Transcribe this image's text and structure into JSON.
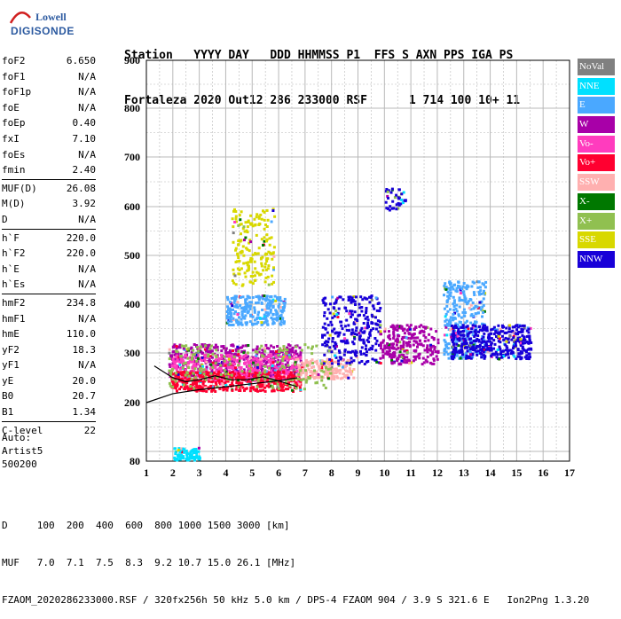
{
  "logo": {
    "line1": "Lowell",
    "line2": "DIGISONDE"
  },
  "header": {
    "labels": "Station   YYYY DAY   DDD HHMMSS P1  FFS S AXN PPS IGA PS",
    "values": "Fortaleza 2020 Out12 286 233000 RSF      1 714 100 10+ 11"
  },
  "params_groups": [
    [
      {
        "k": "foF2",
        "v": "6.650"
      },
      {
        "k": "foF1",
        "v": "N/A"
      },
      {
        "k": "foF1p",
        "v": "N/A"
      },
      {
        "k": "foE",
        "v": "N/A"
      },
      {
        "k": "foEp",
        "v": "0.40"
      },
      {
        "k": "fxI",
        "v": "7.10"
      },
      {
        "k": "foEs",
        "v": "N/A"
      },
      {
        "k": "fmin",
        "v": "2.40"
      }
    ],
    [
      {
        "k": "MUF(D)",
        "v": "26.08"
      },
      {
        "k": "M(D)",
        "v": "3.92"
      },
      {
        "k": "D",
        "v": "N/A"
      }
    ],
    [
      {
        "k": "h`F",
        "v": "220.0"
      },
      {
        "k": "h`F2",
        "v": "220.0"
      },
      {
        "k": "h`E",
        "v": "N/A"
      },
      {
        "k": "h`Es",
        "v": "N/A"
      }
    ],
    [
      {
        "k": "hmF2",
        "v": "234.8"
      },
      {
        "k": "hmF1",
        "v": "N/A"
      },
      {
        "k": "hmE",
        "v": "110.0"
      },
      {
        "k": "yF2",
        "v": "18.3"
      },
      {
        "k": "yF1",
        "v": "N/A"
      },
      {
        "k": "yE",
        "v": "20.0"
      },
      {
        "k": "B0",
        "v": "20.7"
      },
      {
        "k": "B1",
        "v": "1.34"
      }
    ],
    [
      {
        "k": "C-level",
        "v": "22"
      }
    ]
  ],
  "auto": {
    "l1": "Auto:",
    "l2": "Artist5",
    "l3": "500200"
  },
  "legend": [
    {
      "label": "NoVal",
      "color": "#808080"
    },
    {
      "label": "NNE",
      "color": "#00e0ff"
    },
    {
      "label": "E",
      "color": "#4aa8ff"
    },
    {
      "label": "W",
      "color": "#a800a8"
    },
    {
      "label": "Vo-",
      "color": "#ff3cbe"
    },
    {
      "label": "Vo+",
      "color": "#ff0030"
    },
    {
      "label": "SSW",
      "color": "#ffb0b0"
    },
    {
      "label": "X-",
      "color": "#007800"
    },
    {
      "label": "X+",
      "color": "#90c050"
    },
    {
      "label": "SSE",
      "color": "#d8d800"
    },
    {
      "label": "NNW",
      "color": "#1800d8"
    }
  ],
  "footer": {
    "l1": "D     100  200  400  600  800 1000 1500 3000 [km]",
    "l2": "MUF   7.0  7.1  7.5  8.3  9.2 10.7 15.0 26.1 [MHz]",
    "l3": "FZAOM_2020286233000.RSF / 320fx256h 50 kHz 5.0 km / DPS-4 FZAOM 904 / 3.9 S 321.6 E   Ion2Png 1.3.20"
  },
  "chart_data": {
    "type": "scatter",
    "xlim": [
      1,
      17
    ],
    "ylim": [
      80,
      900
    ],
    "x_ticks": [
      1,
      2,
      3,
      4,
      5,
      6,
      7,
      8,
      9,
      10,
      11,
      12,
      13,
      14,
      15,
      16,
      17
    ],
    "y_ticks": [
      80,
      200,
      300,
      400,
      500,
      600,
      700,
      800,
      900
    ],
    "grid": true,
    "legend_position": "right",
    "clusters": [
      {
        "name": "W",
        "x": [
          1.8,
          6.8
        ],
        "y": [
          255,
          320
        ],
        "n": 500
      },
      {
        "name": "Vo-",
        "x": [
          1.9,
          6.8
        ],
        "y": [
          245,
          300
        ],
        "n": 450
      },
      {
        "name": "Vo+",
        "x": [
          1.9,
          6.8
        ],
        "y": [
          225,
          265
        ],
        "n": 450
      },
      {
        "name": "SSW",
        "x": [
          6.6,
          8.8
        ],
        "y": [
          250,
          290
        ],
        "n": 200
      },
      {
        "name": "E",
        "x": [
          4.0,
          6.2
        ],
        "y": [
          360,
          420
        ],
        "n": 260
      },
      {
        "name": "E",
        "x": [
          12.2,
          13.8
        ],
        "y": [
          290,
          450
        ],
        "n": 320
      },
      {
        "name": "SSE",
        "x": [
          4.2,
          5.8
        ],
        "y": [
          440,
          600
        ],
        "n": 180
      },
      {
        "name": "NNW",
        "x": [
          7.6,
          9.8
        ],
        "y": [
          280,
          420
        ],
        "n": 280
      },
      {
        "name": "NNW",
        "x": [
          12.5,
          15.5
        ],
        "y": [
          290,
          360
        ],
        "n": 420
      },
      {
        "name": "NNW",
        "x": [
          10.0,
          10.8
        ],
        "y": [
          595,
          640
        ],
        "n": 40
      },
      {
        "name": "W",
        "x": [
          9.8,
          12
        ],
        "y": [
          280,
          360
        ],
        "n": 260
      },
      {
        "name": "NNE",
        "x": [
          2.0,
          3.0
        ],
        "y": [
          84,
          110
        ],
        "n": 80
      },
      {
        "name": "X+",
        "x": [
          1.8,
          8
        ],
        "y": [
          230,
          320
        ],
        "n": 200
      }
    ],
    "profile": [
      [
        1.3,
        274
      ],
      [
        2.0,
        250
      ],
      [
        2.5,
        242
      ],
      [
        3.0,
        246
      ],
      [
        3.6,
        254
      ],
      [
        4.2,
        246
      ],
      [
        4.8,
        246
      ],
      [
        5.4,
        252
      ],
      [
        6.0,
        244
      ],
      [
        6.7,
        232
      ]
    ],
    "profile_lower": [
      [
        1.0,
        200
      ],
      [
        2.0,
        218
      ],
      [
        3.0,
        226
      ],
      [
        4.0,
        232
      ],
      [
        5.0,
        238
      ],
      [
        6.0,
        244
      ],
      [
        6.7,
        250
      ]
    ]
  }
}
